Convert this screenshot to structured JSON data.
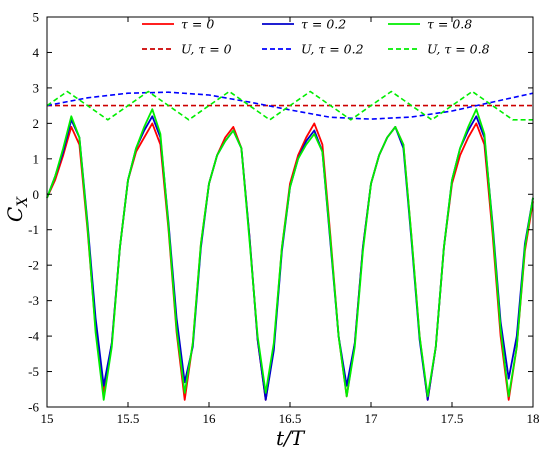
{
  "chart_data": {
    "type": "line",
    "xlabel": "t/T",
    "ylabel": "C_X",
    "xlim": [
      15,
      18
    ],
    "ylim": [
      -6,
      5
    ],
    "xticks": [
      "15",
      "15.5",
      "16",
      "16.5",
      "17",
      "17.5",
      "18"
    ],
    "yticks": [
      "-6",
      "-5",
      "-4",
      "-3",
      "-2",
      "-1",
      "0",
      "1",
      "2",
      "3",
      "4",
      "5"
    ],
    "grid": false,
    "legend_position": "top",
    "series": [
      {
        "name": "τ = 0",
        "color": "#ff0000",
        "dash": "solid",
        "x": [
          15.0,
          15.05,
          15.1,
          15.15,
          15.2,
          15.25,
          15.3,
          15.35,
          15.4,
          15.45,
          15.5,
          15.55,
          15.6,
          15.65,
          15.7,
          15.75,
          15.8,
          15.85,
          15.9,
          15.95,
          16.0,
          16.05,
          16.1,
          16.15,
          16.2,
          16.25,
          16.3,
          16.35,
          16.4,
          16.45,
          16.5,
          16.55,
          16.6,
          16.65,
          16.7,
          16.75,
          16.8,
          16.85,
          16.9,
          16.95,
          17.0,
          17.05,
          17.1,
          17.15,
          17.2,
          17.25,
          17.3,
          17.35,
          17.4,
          17.45,
          17.5,
          17.55,
          17.6,
          17.65,
          17.7,
          17.75,
          17.8,
          17.85,
          17.9,
          17.95,
          18.0
        ],
        "y": [
          -0.1,
          0.4,
          1.1,
          1.9,
          1.4,
          -1.0,
          -3.8,
          -5.6,
          -4.2,
          -1.5,
          0.4,
          1.2,
          1.6,
          2.0,
          1.4,
          -1.0,
          -3.9,
          -5.8,
          -4.2,
          -1.4,
          0.3,
          1.1,
          1.6,
          1.9,
          1.3,
          -1.2,
          -4.1,
          -5.8,
          -4.3,
          -1.5,
          0.3,
          1.1,
          1.6,
          2.0,
          1.4,
          -1.2,
          -4.0,
          -5.7,
          -4.2,
          -1.5,
          0.3,
          1.1,
          1.6,
          1.9,
          1.4,
          -1.2,
          -4.0,
          -5.8,
          -4.3,
          -1.5,
          0.3,
          1.1,
          1.6,
          2.0,
          1.4,
          -1.1,
          -4.0,
          -5.8,
          -4.3,
          -1.6,
          -0.2
        ]
      },
      {
        "name": "τ = 0.2",
        "color": "#0000cc",
        "dash": "solid",
        "x": [
          15.0,
          15.05,
          15.1,
          15.15,
          15.2,
          15.25,
          15.3,
          15.35,
          15.4,
          15.45,
          15.5,
          15.55,
          15.6,
          15.65,
          15.7,
          15.75,
          15.8,
          15.85,
          15.9,
          15.95,
          16.0,
          16.05,
          16.1,
          16.15,
          16.2,
          16.25,
          16.3,
          16.35,
          16.4,
          16.45,
          16.5,
          16.55,
          16.6,
          16.65,
          16.7,
          16.75,
          16.8,
          16.85,
          16.9,
          16.95,
          17.0,
          17.05,
          17.1,
          17.15,
          17.2,
          17.25,
          17.3,
          17.35,
          17.4,
          17.45,
          17.5,
          17.55,
          17.6,
          17.65,
          17.7,
          17.75,
          17.8,
          17.85,
          17.9,
          17.95,
          18.0
        ],
        "y": [
          -0.1,
          0.5,
          1.2,
          2.1,
          1.6,
          -0.8,
          -3.5,
          -5.4,
          -4.2,
          -1.5,
          0.4,
          1.3,
          1.8,
          2.2,
          1.6,
          -0.8,
          -3.5,
          -5.3,
          -4.3,
          -1.5,
          0.3,
          1.1,
          1.5,
          1.8,
          1.3,
          -1.2,
          -4.1,
          -5.8,
          -4.4,
          -1.6,
          0.2,
          1.0,
          1.5,
          1.8,
          1.2,
          -1.4,
          -4.0,
          -5.4,
          -4.2,
          -1.5,
          0.3,
          1.1,
          1.6,
          1.9,
          1.3,
          -1.3,
          -4.1,
          -5.8,
          -4.3,
          -1.5,
          0.4,
          1.3,
          1.8,
          2.2,
          1.6,
          -0.8,
          -3.6,
          -5.2,
          -4.0,
          -1.4,
          -0.1
        ]
      },
      {
        "name": "τ = 0.8",
        "color": "#00ee00",
        "dash": "solid",
        "x": [
          15.0,
          15.05,
          15.1,
          15.15,
          15.2,
          15.25,
          15.3,
          15.35,
          15.4,
          15.45,
          15.5,
          15.55,
          15.6,
          15.65,
          15.7,
          15.75,
          15.8,
          15.85,
          15.9,
          15.95,
          16.0,
          16.05,
          16.1,
          16.15,
          16.2,
          16.25,
          16.3,
          16.35,
          16.4,
          16.45,
          16.5,
          16.55,
          16.6,
          16.65,
          16.7,
          16.75,
          16.8,
          16.85,
          16.9,
          16.95,
          17.0,
          17.05,
          17.1,
          17.15,
          17.2,
          17.25,
          17.3,
          17.35,
          17.4,
          17.45,
          17.5,
          17.55,
          17.6,
          17.65,
          17.7,
          17.75,
          17.8,
          17.85,
          17.9,
          17.95,
          18.0
        ],
        "y": [
          -0.1,
          0.5,
          1.3,
          2.2,
          1.6,
          -0.9,
          -3.9,
          -5.8,
          -4.3,
          -1.5,
          0.4,
          1.3,
          1.9,
          2.4,
          1.7,
          -0.9,
          -3.8,
          -5.6,
          -4.2,
          -1.4,
          0.3,
          1.1,
          1.5,
          1.8,
          1.3,
          -1.3,
          -4.0,
          -5.6,
          -4.2,
          -1.5,
          0.2,
          1.0,
          1.4,
          1.7,
          1.2,
          -1.3,
          -4.0,
          -5.7,
          -4.3,
          -1.6,
          0.3,
          1.1,
          1.6,
          1.9,
          1.4,
          -1.2,
          -4.0,
          -5.7,
          -4.3,
          -1.5,
          0.4,
          1.3,
          1.9,
          2.4,
          1.7,
          -0.9,
          -3.8,
          -5.7,
          -4.3,
          -1.5,
          -0.1
        ]
      },
      {
        "name": "U, τ = 0",
        "color": "#cc0000",
        "dash": "dashed",
        "x": [
          15.0,
          18.0
        ],
        "y": [
          2.5,
          2.5
        ]
      },
      {
        "name": "U, τ = 0.2",
        "color": "#0000ff",
        "dash": "dashed",
        "x": [
          15.0,
          15.25,
          15.5,
          15.75,
          16.0,
          16.25,
          16.5,
          16.75,
          17.0,
          17.25,
          17.5,
          17.75,
          18.0
        ],
        "y": [
          2.5,
          2.72,
          2.85,
          2.88,
          2.8,
          2.6,
          2.38,
          2.17,
          2.12,
          2.18,
          2.35,
          2.6,
          2.85
        ]
      },
      {
        "name": "U, τ = 0.8",
        "color": "#00ee00",
        "dash": "dashed",
        "x": [
          15.0,
          15.125,
          15.25,
          15.375,
          15.5,
          15.625,
          15.75,
          15.875,
          16.0,
          16.125,
          16.25,
          16.375,
          16.5,
          16.625,
          16.75,
          16.875,
          17.0,
          17.125,
          17.25,
          17.375,
          17.5,
          17.625,
          17.75,
          17.875,
          18.0
        ],
        "y": [
          2.5,
          2.9,
          2.5,
          2.1,
          2.5,
          2.9,
          2.5,
          2.1,
          2.5,
          2.9,
          2.5,
          2.1,
          2.5,
          2.9,
          2.5,
          2.1,
          2.5,
          2.9,
          2.5,
          2.1,
          2.5,
          2.9,
          2.5,
          2.1,
          2.1
        ]
      }
    ]
  }
}
